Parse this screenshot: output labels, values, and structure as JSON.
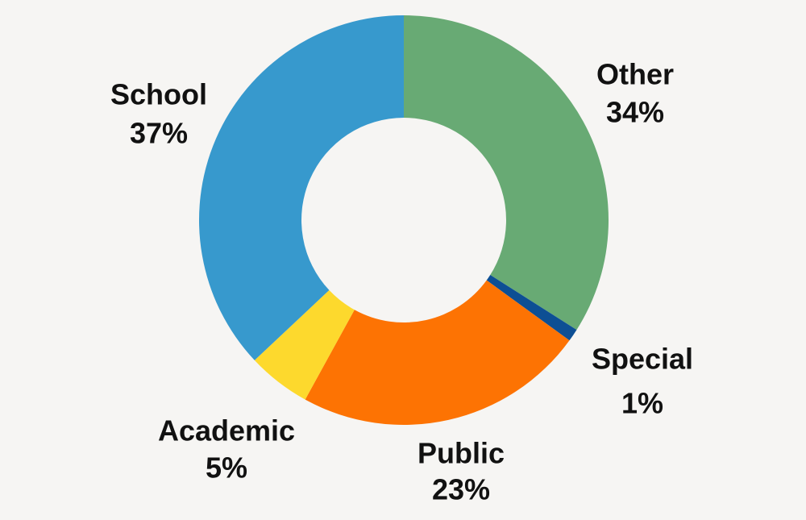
{
  "chart_data": {
    "type": "donut",
    "categories": [
      "Other",
      "Special",
      "Public",
      "Academic",
      "School"
    ],
    "values": [
      34,
      1,
      23,
      5,
      37
    ],
    "value_labels": [
      "34%",
      "1%",
      "23%",
      "5%",
      "37%"
    ],
    "colors": [
      "#68aa74",
      "#0d4f94",
      "#fd7303",
      "#fdd92d",
      "#3799cd"
    ]
  }
}
